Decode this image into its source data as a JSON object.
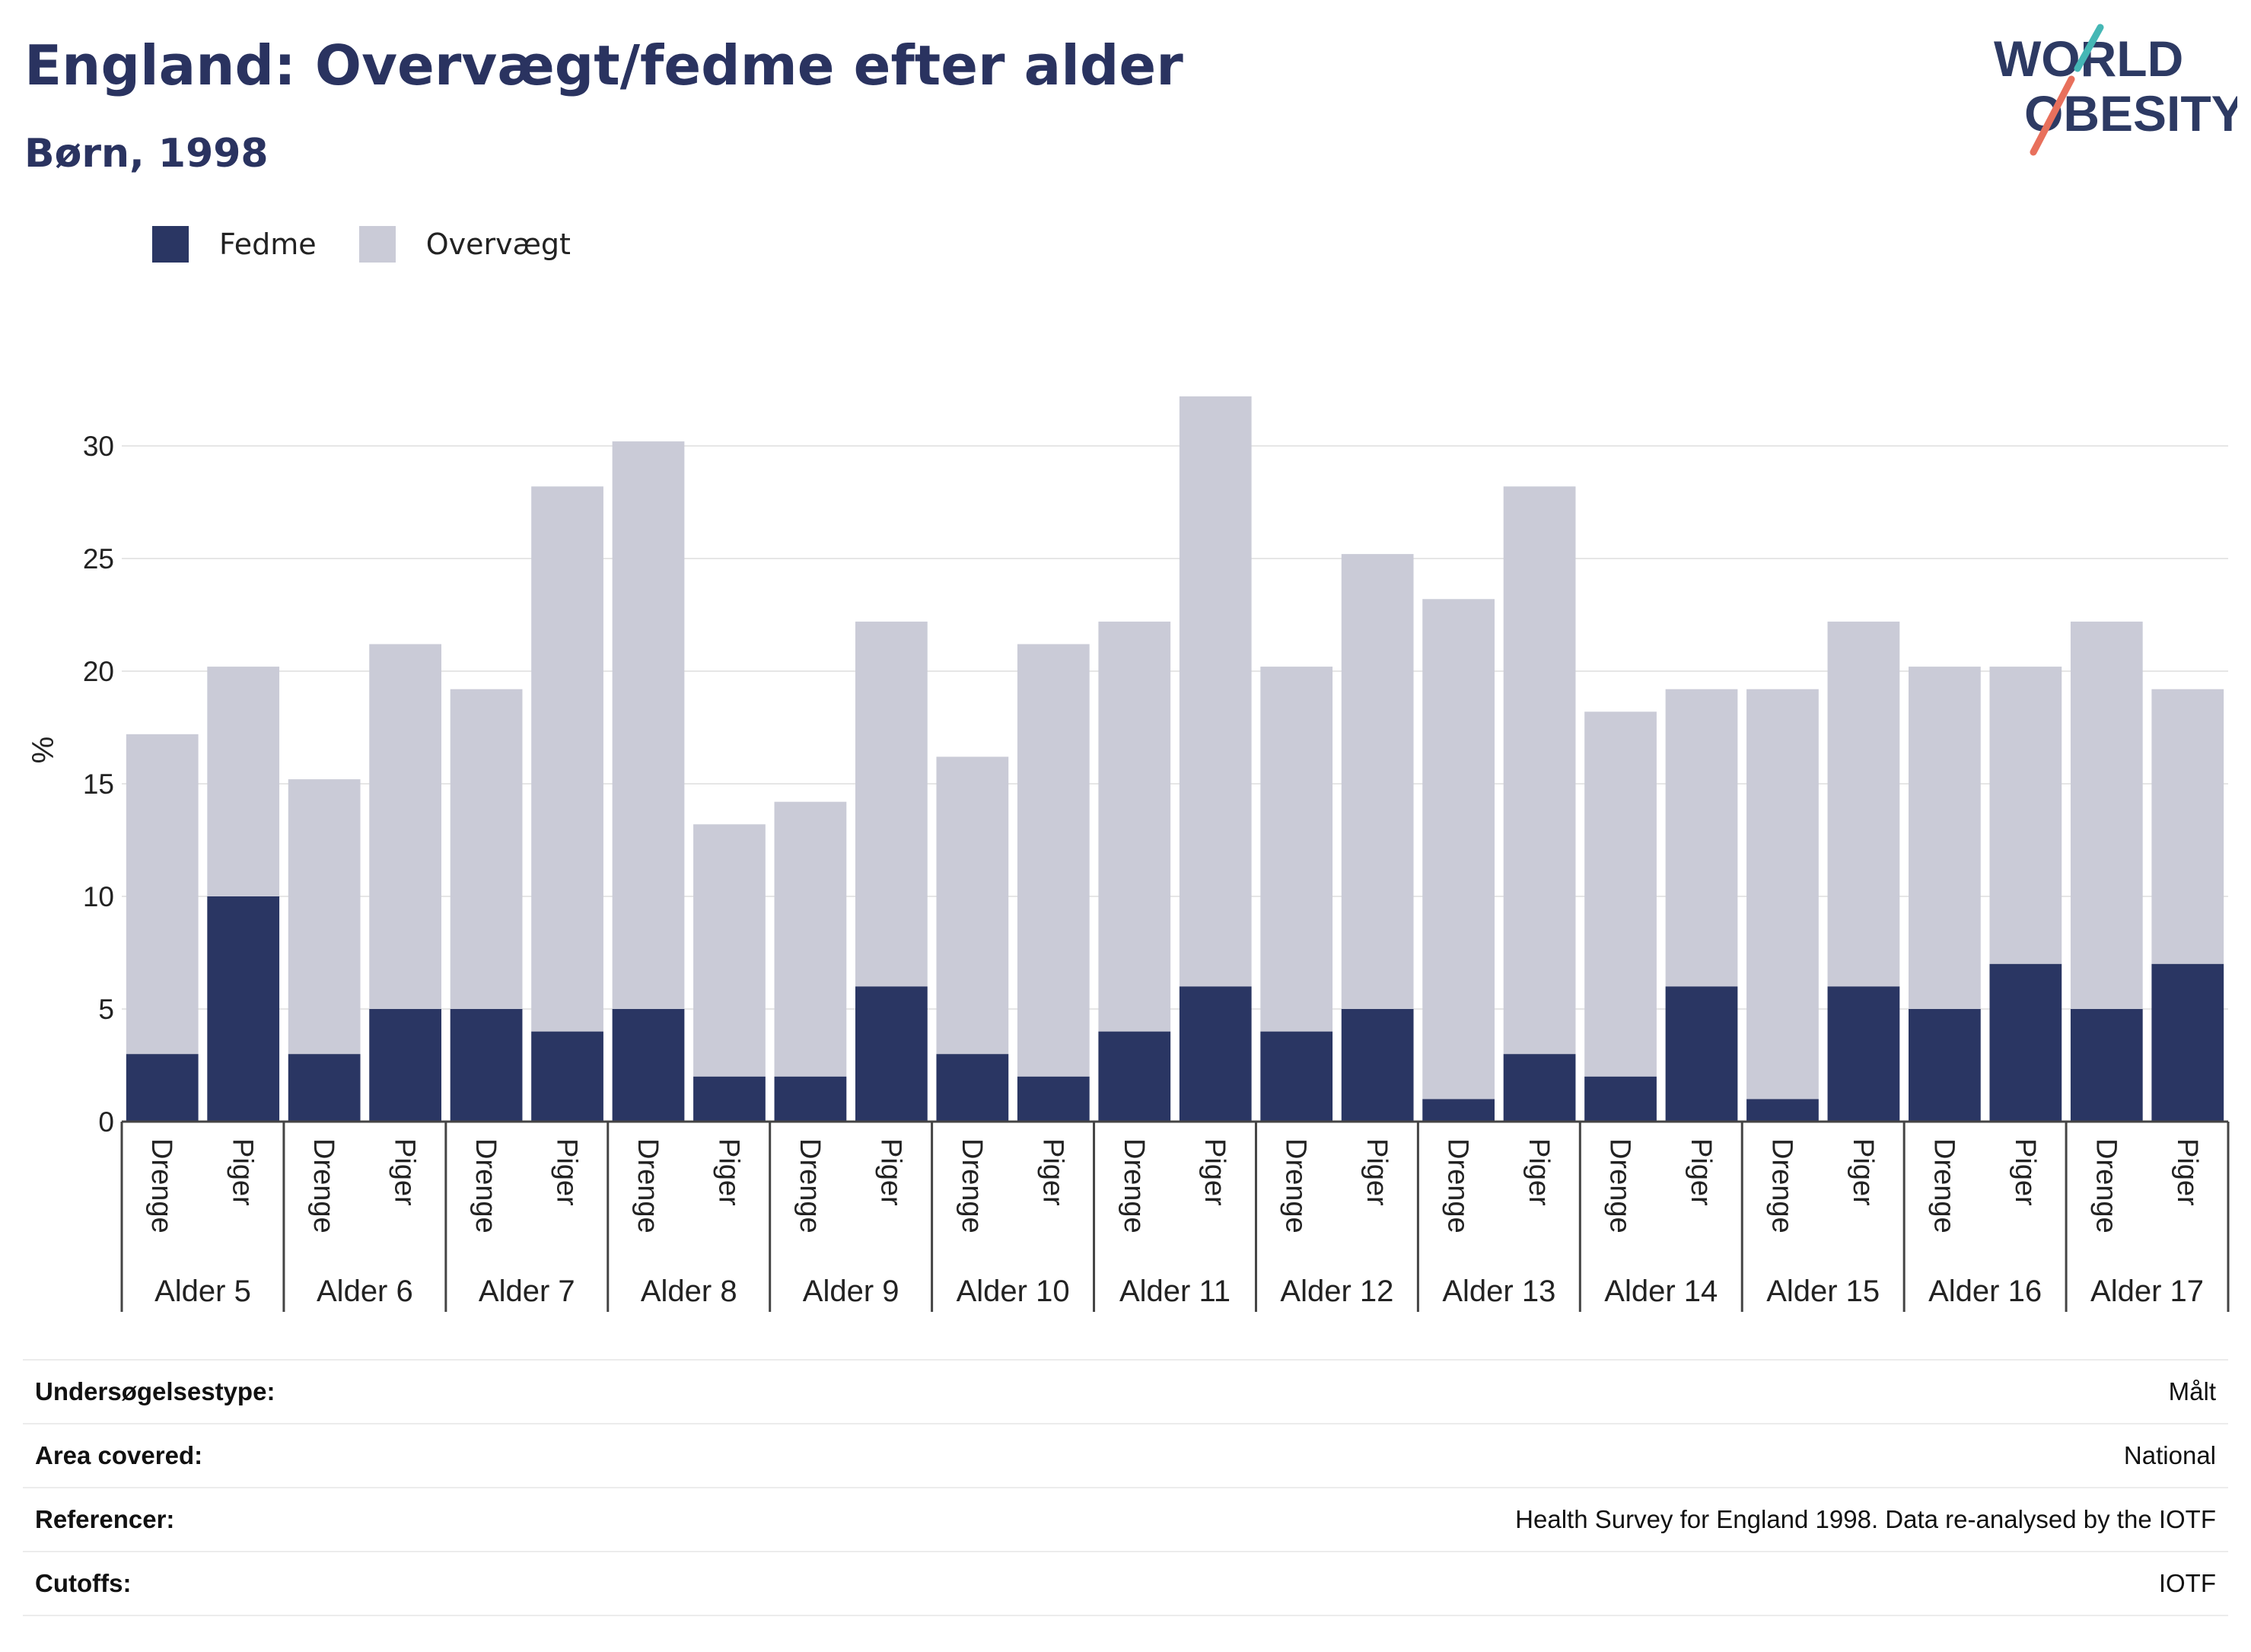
{
  "header": {
    "title": "England: Overvægt/fedme efter alder",
    "subtitle": "Børn, 1998"
  },
  "logo": {
    "line1": "WORLD",
    "line2": "OBESITY"
  },
  "colors": {
    "fedme": "#2a3663",
    "overvaegt": "#cacbd7",
    "title": "#2a3360",
    "logo_text": "#2d3a63",
    "logo_teal": "#45b7b5",
    "logo_coral": "#e8705c"
  },
  "legend": {
    "items": [
      "Fedme",
      "Overvægt"
    ]
  },
  "chart_data": {
    "type": "bar",
    "stacked": true,
    "ylabel": "%",
    "ylim": [
      0,
      33
    ],
    "yticks": [
      0,
      5,
      10,
      15,
      20,
      25,
      30
    ],
    "grid": true,
    "legend_position": "top-left",
    "groups": [
      "Alder 5",
      "Alder 6",
      "Alder 7",
      "Alder 8",
      "Alder 9",
      "Alder 10",
      "Alder 11",
      "Alder 12",
      "Alder 13",
      "Alder 14",
      "Alder 15",
      "Alder 16",
      "Alder 17"
    ],
    "subcategories": [
      "Drenge",
      "Piger"
    ],
    "series": [
      {
        "name": "Fedme",
        "values": [
          3,
          10,
          3,
          5,
          5,
          4,
          5,
          2,
          2,
          6,
          3,
          2,
          4,
          6,
          4,
          5,
          1,
          3,
          2,
          6,
          1,
          6,
          5,
          7,
          5,
          7
        ]
      },
      {
        "name": "Overvægt",
        "values": [
          14.2,
          10.2,
          12.2,
          16.2,
          14.2,
          24.2,
          25.2,
          11.2,
          12.2,
          16.2,
          13.2,
          19.2,
          18.2,
          26.2,
          16.2,
          20.2,
          22.2,
          25.2,
          16.2,
          13.2,
          18.2,
          16.2,
          15.2,
          13.2,
          17.2,
          12.2
        ]
      }
    ]
  },
  "metadata": [
    {
      "label": "Undersøgelsestype:",
      "value": "Målt"
    },
    {
      "label": "Area covered:",
      "value": "National"
    },
    {
      "label": "Referencer:",
      "value": "Health Survey for England 1998. Data re-analysed by the IOTF"
    },
    {
      "label": "Cutoffs:",
      "value": "IOTF"
    }
  ]
}
